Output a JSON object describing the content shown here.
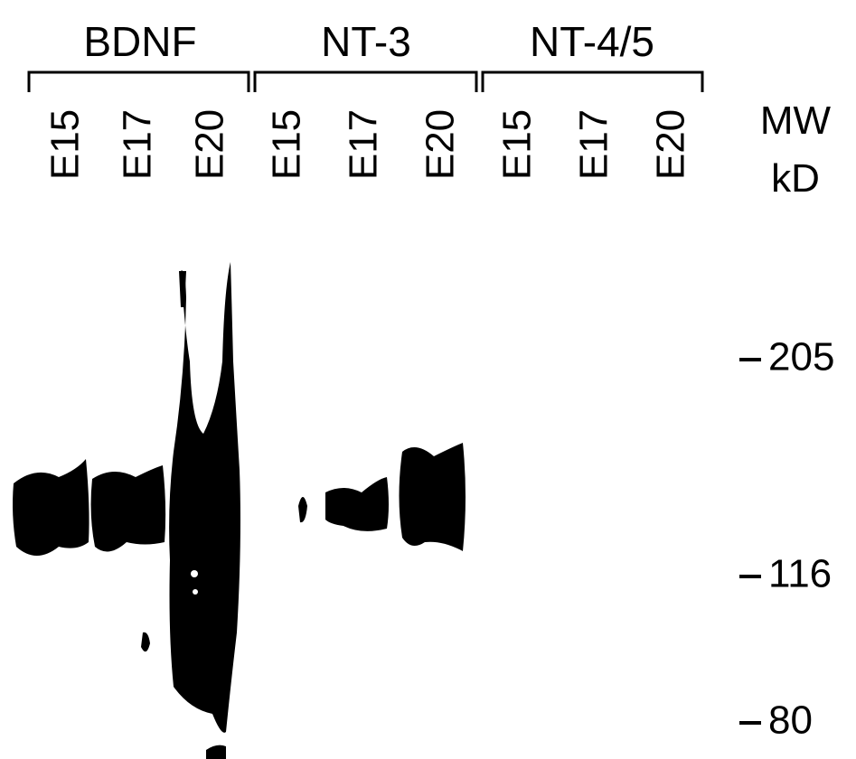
{
  "groups": [
    {
      "label": "BDNF",
      "lanes": [
        "E15",
        "E17",
        "E20"
      ]
    },
    {
      "label": "NT-3",
      "lanes": [
        "E15",
        "E17",
        "E20"
      ]
    },
    {
      "label": "NT-4/5",
      "lanes": [
        "E15",
        "E17",
        "E20"
      ]
    }
  ],
  "mw_header": [
    "MW",
    "kD"
  ],
  "markers": [
    205,
    116,
    80
  ]
}
